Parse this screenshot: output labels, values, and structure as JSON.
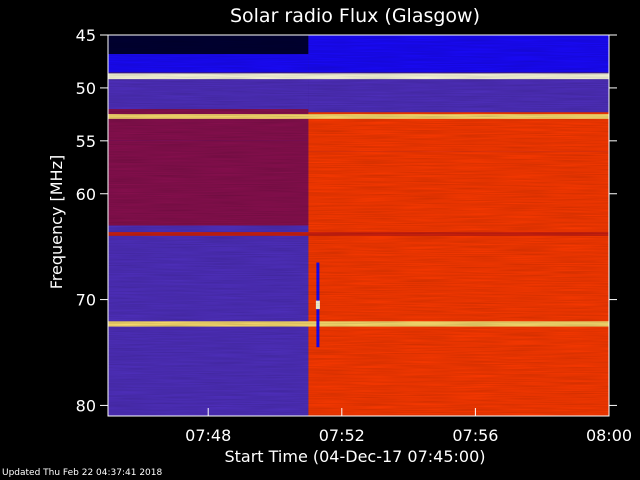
{
  "chart_data": {
    "type": "heatmap",
    "title": "Solar radio Flux (Glasgow)",
    "ylabel": "Frequency [MHz]",
    "xlabel": "Start Time (04-Dec-17 07:45:00)",
    "x_axis": {
      "unit": "time",
      "range": [
        "07:45",
        "08:00"
      ],
      "ticks": [
        "07:48",
        "07:52",
        "07:56",
        "08:00"
      ]
    },
    "y_axis": {
      "unit": "MHz",
      "range": [
        45,
        81
      ],
      "inverted": true,
      "ticks": [
        45,
        50,
        55,
        60,
        70,
        80
      ]
    },
    "colormap": [
      "#000033",
      "#1a0aff",
      "#5030c0",
      "#8a1050",
      "#d02010",
      "#ff3a00",
      "#ff8a10",
      "#ffe070",
      "#ffffe0"
    ],
    "intensity_regions": [
      {
        "t_start": "07:45",
        "t_end": "07:51",
        "f_low": 45,
        "f_high": 46.8,
        "intensity": 0.02
      },
      {
        "t_start": "07:45",
        "t_end": "07:51",
        "f_low": 46.8,
        "f_high": 48.5,
        "intensity": 0.18
      },
      {
        "t_start": "07:45",
        "t_end": "07:51",
        "f_low": 49.2,
        "f_high": 52.0,
        "intensity": 0.25
      },
      {
        "t_start": "07:45",
        "t_end": "07:51",
        "f_low": 52.0,
        "f_high": 55.0,
        "intensity": 0.38
      },
      {
        "t_start": "07:45",
        "t_end": "07:51",
        "f_low": 55.0,
        "f_high": 63.0,
        "intensity": 0.42
      },
      {
        "t_start": "07:45",
        "t_end": "07:51",
        "f_low": 63.0,
        "f_high": 81.0,
        "intensity": 0.3
      },
      {
        "t_start": "07:51",
        "t_end": "08:00",
        "f_low": 45,
        "f_high": 48.5,
        "intensity": 0.18
      },
      {
        "t_start": "07:51",
        "t_end": "08:00",
        "f_low": 49.2,
        "f_high": 52.3,
        "intensity": 0.22
      },
      {
        "t_start": "07:51",
        "t_end": "08:00",
        "f_low": 52.3,
        "f_high": 56.0,
        "intensity": 0.62
      },
      {
        "t_start": "07:51",
        "t_end": "08:00",
        "f_low": 56.0,
        "f_high": 63.0,
        "intensity": 0.66
      },
      {
        "t_start": "07:51",
        "t_end": "08:00",
        "f_low": 63.0,
        "f_high": 81.0,
        "intensity": 0.64
      }
    ],
    "horizontal_bands": [
      {
        "f": 48.9,
        "width": 0.55,
        "intensity": 0.95
      },
      {
        "f": 52.7,
        "width": 0.45,
        "intensity": 0.85
      },
      {
        "f": 63.8,
        "width": 0.35,
        "intensity": 0.5
      },
      {
        "f": 72.3,
        "width": 0.5,
        "intensity": 0.9
      }
    ],
    "burst": {
      "t": "07:51",
      "f_low": 66.5,
      "f_high": 74.5
    },
    "grid": false,
    "legend": "none"
  },
  "footer": {
    "updated": "Updated Thu Feb 22 04:37:41 2018"
  }
}
